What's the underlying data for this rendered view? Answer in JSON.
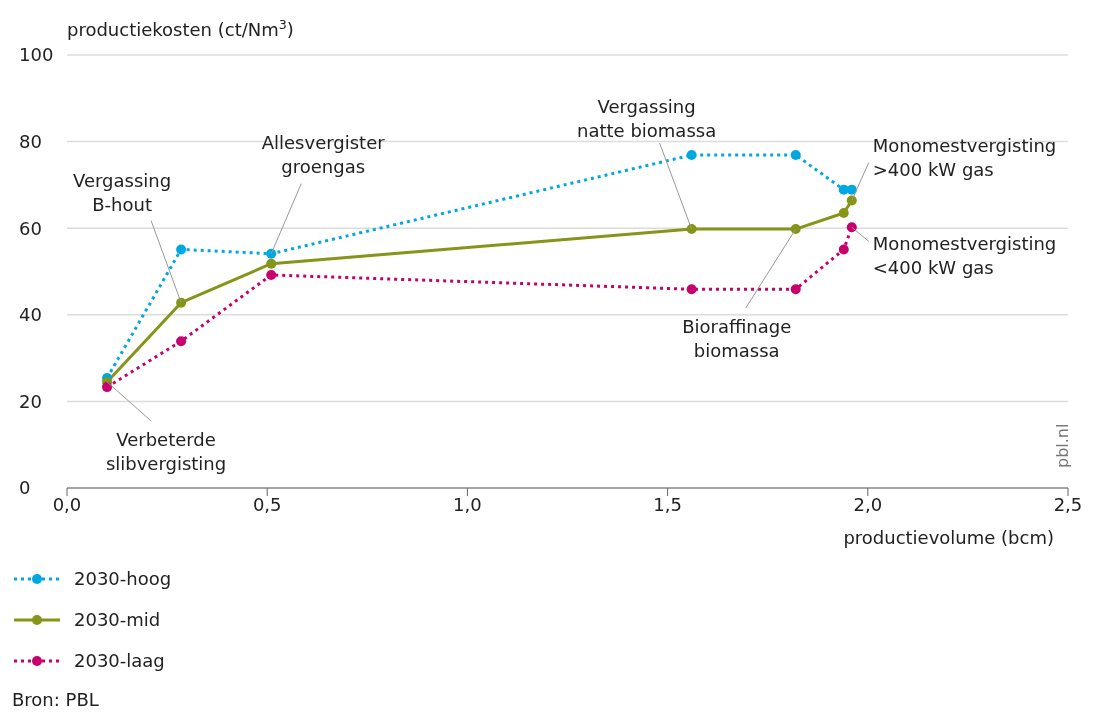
{
  "chart_data": {
    "type": "line",
    "ylabel": "productiekosten (ct/Nm$^{3}$)",
    "xlabel": "productievolume (bcm)",
    "xlim": [
      0,
      2.5
    ],
    "xticks": [
      {
        "value": 0,
        "label": "0,0"
      },
      {
        "value": 0.5,
        "label": "0,5"
      },
      {
        "value": 1,
        "label": "1,0"
      },
      {
        "value": 1.5,
        "label": "1,5"
      },
      {
        "value": 2,
        "label": "2,0"
      },
      {
        "value": 2.5,
        "label": "2,5"
      }
    ],
    "ylim": [
      0,
      100
    ],
    "yticks": [
      0,
      20,
      40,
      60,
      80,
      100
    ],
    "grid": "y",
    "legend": "bottom left",
    "marker": "circle",
    "series": [
      {
        "name": "2030-hoog",
        "color": "#00a8e1",
        "line_style": "dotted",
        "x": [
          0.1,
          0.285,
          0.51,
          1.56,
          1.82,
          1.94,
          1.96
        ],
        "values": [
          25.4,
          55.1,
          54.1,
          76.9,
          76.9,
          68.9,
          68.9
        ]
      },
      {
        "name": "2030-mid",
        "color": "#869418",
        "line_style": "solid",
        "x": [
          0.1,
          0.285,
          0.51,
          1.56,
          1.82,
          1.94,
          1.96
        ],
        "values": [
          24.5,
          42.8,
          51.8,
          59.8,
          59.8,
          63.5,
          66.4
        ]
      },
      {
        "name": "2030-laag",
        "color": "#c8006e",
        "line_style": "dotted",
        "x": [
          0.1,
          0.285,
          0.51,
          1.56,
          1.82,
          1.94,
          1.96
        ],
        "values": [
          23.3,
          33.9,
          49.2,
          45.9,
          45.9,
          55.1,
          60.2
        ]
      }
    ],
    "annotations": [
      {
        "text": "Vergassing\nB-hout",
        "x": 0.285,
        "y": 42.8
      },
      {
        "text": "Allesvergister\ngroengas",
        "x": 0.51,
        "y": 54.1
      },
      {
        "text": "Vergassing\nnatte biomassa",
        "x": 1.56,
        "y": 59.8
      },
      {
        "text": "Monomestvergisting\n>400 kW gas",
        "x": 1.96,
        "y": 66.4
      },
      {
        "text": "Monomestvergisting\n<400 kW gas",
        "x": 1.96,
        "y": 60.2
      },
      {
        "text": "Bioraffinage\nbiomassa",
        "x": 1.82,
        "y": 59.8
      },
      {
        "text": "Verbeterde\nslibvergisting",
        "x": 0.1,
        "y": 24.5
      },
      "pbl.nl",
      "Bron: PBL"
    ]
  }
}
